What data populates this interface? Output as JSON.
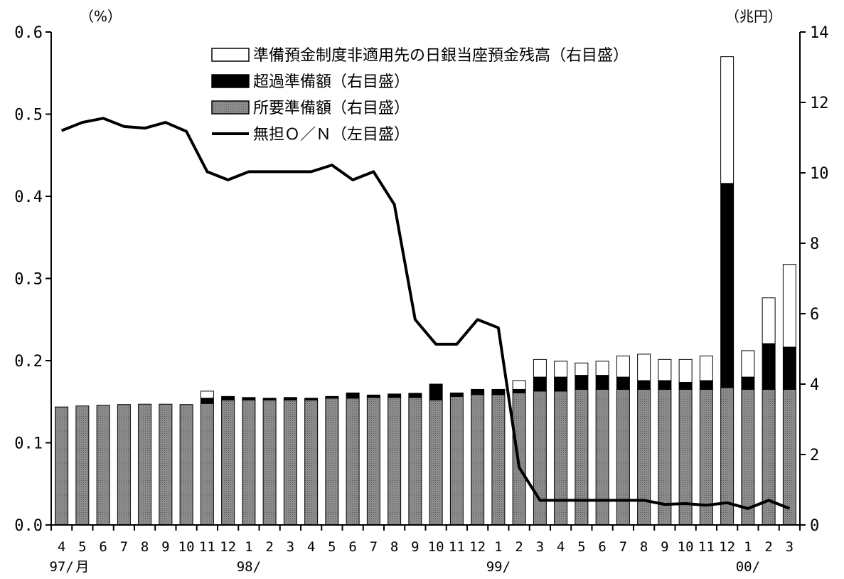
{
  "chart_data": {
    "type": "bar",
    "stacked": true,
    "left_unit": "（%）",
    "right_unit": "（兆円）",
    "left_axis": {
      "ylim": [
        0,
        0.6
      ],
      "ticks": [
        "0.0",
        "0.1",
        "0.2",
        "0.3",
        "0.4",
        "0.5",
        "0.6"
      ]
    },
    "right_axis": {
      "ylim": [
        0,
        14
      ],
      "ticks": [
        "0",
        "2",
        "4",
        "6",
        "8",
        "10",
        "12",
        "14"
      ]
    },
    "categories": [
      "4",
      "5",
      "6",
      "7",
      "8",
      "9",
      "10",
      "11",
      "12",
      "1",
      "2",
      "3",
      "4",
      "5",
      "6",
      "7",
      "8",
      "9",
      "10",
      "11",
      "12",
      "1",
      "2",
      "3",
      "4",
      "5",
      "6",
      "7",
      "8",
      "9",
      "10",
      "11",
      "12",
      "1",
      "2",
      "3"
    ],
    "year_labels": [
      {
        "text": "97/",
        "index": 0
      },
      {
        "text": "月",
        "index": 1
      },
      {
        "text": "98/",
        "index": 9
      },
      {
        "text": "99/",
        "index": 21
      },
      {
        "text": "00/",
        "index": 33
      }
    ],
    "legend_position": "top-center",
    "series": [
      {
        "name": "所要準備額（右目盛）",
        "axis": "right",
        "color": "#8c8c8c",
        "values": [
          3.35,
          3.38,
          3.4,
          3.42,
          3.43,
          3.43,
          3.42,
          3.45,
          3.55,
          3.55,
          3.55,
          3.55,
          3.55,
          3.6,
          3.6,
          3.62,
          3.62,
          3.62,
          3.55,
          3.65,
          3.7,
          3.7,
          3.75,
          3.8,
          3.8,
          3.85,
          3.85,
          3.85,
          3.85,
          3.85,
          3.85,
          3.85,
          3.9,
          3.85,
          3.85,
          3.85
        ]
      },
      {
        "name": "超過準備額（右目盛）",
        "axis": "right",
        "color": "#000000",
        "values": [
          0,
          0,
          0,
          0,
          0,
          0,
          0,
          0.15,
          0.1,
          0.07,
          0.05,
          0.07,
          0.05,
          0.05,
          0.15,
          0.07,
          0.1,
          0.12,
          0.45,
          0.1,
          0.15,
          0.15,
          0.1,
          0.4,
          0.4,
          0.4,
          0.4,
          0.35,
          0.25,
          0.25,
          0.2,
          0.25,
          5.8,
          0.35,
          1.3,
          1.2
        ]
      },
      {
        "name": "準備預金制度非適用先の日銀当座預金残高（右目盛）",
        "axis": "right",
        "color": "#ffffff",
        "values": [
          0,
          0,
          0,
          0,
          0,
          0,
          0,
          0.2,
          0,
          0,
          0,
          0,
          0,
          0,
          0,
          0,
          0,
          0,
          0,
          0,
          0,
          0,
          0.25,
          0.5,
          0.45,
          0.35,
          0.4,
          0.6,
          0.75,
          0.6,
          0.65,
          0.7,
          3.6,
          0.75,
          1.3,
          2.35
        ]
      },
      {
        "name": "無担Ｏ／Ｎ（左目盛）",
        "axis": "left",
        "type": "line",
        "color": "#000000",
        "values": [
          0.48,
          0.49,
          0.495,
          0.485,
          0.483,
          0.49,
          0.479,
          0.43,
          0.42,
          0.43,
          0.43,
          0.43,
          0.43,
          0.438,
          0.42,
          0.43,
          0.39,
          0.25,
          0.22,
          0.22,
          0.25,
          0.24,
          0.07,
          0.03,
          0.03,
          0.03,
          0.03,
          0.03,
          0.03,
          0.025,
          0.026,
          0.024,
          0.027,
          0.02,
          0.03,
          0.02
        ]
      }
    ]
  }
}
